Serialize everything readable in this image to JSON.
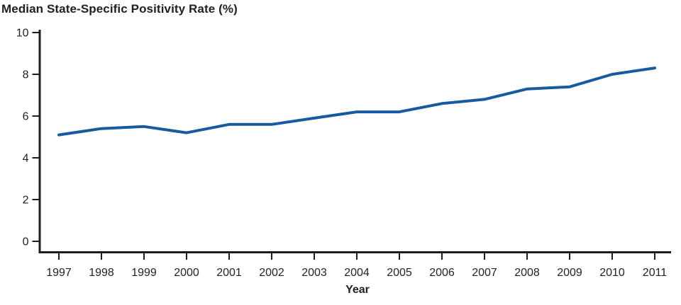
{
  "chart_data": {
    "type": "line",
    "title": "Median State-Specific Positivity Rate (%)",
    "xlabel": "Year",
    "ylabel": "",
    "x": [
      1997,
      1998,
      1999,
      2000,
      2001,
      2002,
      2003,
      2004,
      2005,
      2006,
      2007,
      2008,
      2009,
      2010,
      2011
    ],
    "series": [
      {
        "name": "Median state-specific positivity rate (%)",
        "values": [
          5.1,
          5.4,
          5.5,
          5.2,
          5.6,
          5.6,
          5.9,
          6.2,
          6.2,
          6.6,
          6.8,
          7.3,
          7.4,
          8.0,
          8.3
        ],
        "color": "#165AA0"
      }
    ],
    "ylim": [
      0,
      10
    ],
    "y_ticks": [
      0,
      2,
      4,
      6,
      8,
      10
    ],
    "grid": false,
    "legend": "none",
    "colors": {
      "line": "#165AA0",
      "axis": "#1c1c1c",
      "text": "#231f20",
      "background": "#ffffff"
    }
  }
}
